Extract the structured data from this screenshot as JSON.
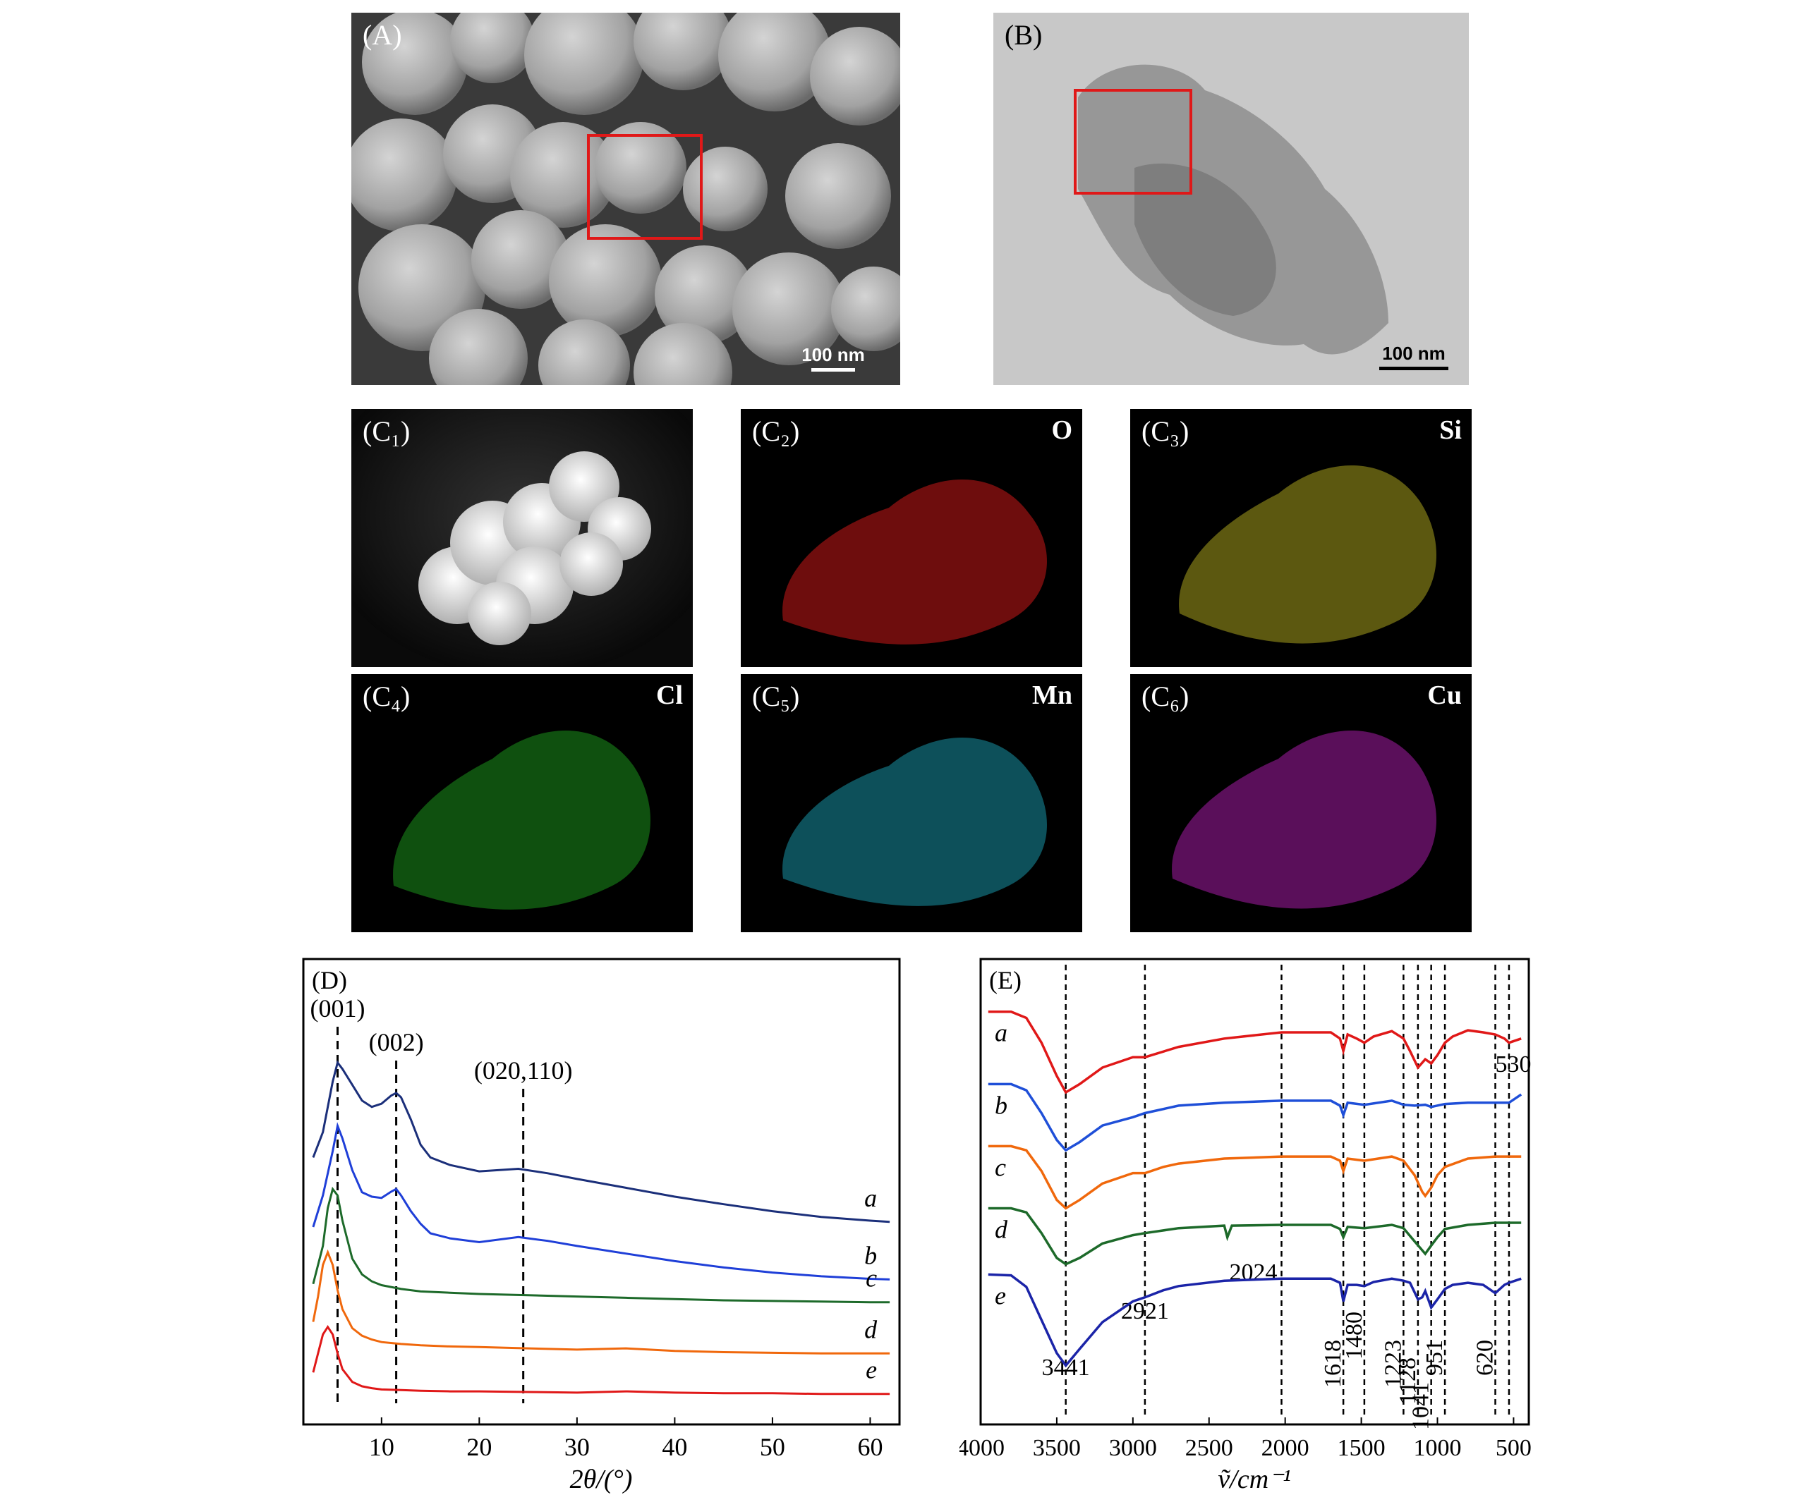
{
  "figure": {
    "panel_A": {
      "label": "(A)",
      "scale_bar": "100 nm"
    },
    "panel_B": {
      "label": "(B)",
      "scale_bar": "100 nm"
    },
    "panels_C": [
      {
        "label": "(C₁)",
        "element": ""
      },
      {
        "label": "(C₂)",
        "element": "O",
        "color": "#c81818"
      },
      {
        "label": "(C₃)",
        "element": "Si",
        "color": "#b8b020"
      },
      {
        "label": "(C₄)",
        "element": "Cl",
        "color": "#1ea01e"
      },
      {
        "label": "(C₅)",
        "element": "Mn",
        "color": "#1aa0b4"
      },
      {
        "label": "(C₆)",
        "element": "Cu",
        "color": "#b41eb4"
      }
    ]
  },
  "chart_data": [
    {
      "panel_label": "(D)",
      "type": "line",
      "xlabel": "2θ/(°)",
      "ylabel": "",
      "xlim": [
        2,
        63
      ],
      "xticks": [
        10,
        20,
        30,
        40,
        50,
        60
      ],
      "grid": false,
      "peak_annotations": [
        {
          "label": "(001)",
          "x": 5.5
        },
        {
          "label": "(002)",
          "x": 11.5
        },
        {
          "label": "(020,110)",
          "x": 24.5
        }
      ],
      "series": [
        {
          "name": "a",
          "color": "#1b2f7a",
          "x": [
            3,
            4,
            5,
            5.5,
            6,
            7,
            8,
            9,
            10,
            11,
            11.5,
            12,
            13,
            14,
            15,
            17,
            20,
            24,
            27,
            30,
            35,
            40,
            45,
            50,
            55,
            60,
            62
          ],
          "y": [
            640,
            680,
            760,
            790,
            780,
            755,
            730,
            720,
            725,
            738,
            742,
            735,
            700,
            660,
            640,
            628,
            618,
            622,
            615,
            606,
            592,
            578,
            566,
            555,
            546,
            540,
            538
          ]
        },
        {
          "name": "b",
          "color": "#1f3fd8",
          "x": [
            3,
            4,
            5,
            5.5,
            6,
            7,
            8,
            9,
            10,
            11,
            11.5,
            12,
            13,
            14,
            15,
            17,
            20,
            24,
            27,
            30,
            35,
            40,
            45,
            50,
            55,
            60,
            62
          ],
          "y": [
            530,
            580,
            650,
            690,
            670,
            620,
            585,
            578,
            576,
            586,
            590,
            580,
            555,
            535,
            520,
            512,
            506,
            514,
            508,
            500,
            488,
            476,
            466,
            458,
            452,
            448,
            447
          ]
        },
        {
          "name": "c",
          "color": "#1d6a2a",
          "x": [
            3,
            4,
            4.5,
            5,
            5.5,
            6,
            7,
            8,
            9,
            10,
            12,
            14,
            17,
            20,
            25,
            30,
            35,
            40,
            45,
            50,
            55,
            60,
            62
          ],
          "y": [
            440,
            500,
            560,
            590,
            580,
            540,
            480,
            455,
            444,
            438,
            432,
            428,
            426,
            424,
            422,
            420,
            418,
            416,
            414,
            413,
            412,
            411,
            411
          ]
        },
        {
          "name": "d",
          "color": "#f0680c",
          "x": [
            3,
            3.5,
            4,
            4.5,
            5,
            5.5,
            6,
            7,
            8,
            9,
            10,
            12,
            14,
            17,
            20,
            25,
            30,
            35,
            40,
            45,
            50,
            55,
            60,
            62
          ],
          "y": [
            380,
            420,
            470,
            490,
            470,
            430,
            400,
            370,
            358,
            352,
            348,
            345,
            343,
            341,
            340,
            338,
            336,
            338,
            334,
            332,
            331,
            330,
            330,
            330
          ]
        },
        {
          "name": "e",
          "color": "#e01818",
          "x": [
            3,
            3.5,
            4,
            4.5,
            5,
            5.5,
            6,
            7,
            8,
            9,
            10,
            12,
            14,
            17,
            20,
            25,
            30,
            35,
            40,
            45,
            50,
            55,
            60,
            62
          ],
          "y": [
            300,
            330,
            360,
            372,
            360,
            330,
            305,
            285,
            278,
            275,
            273,
            272,
            271,
            270,
            270,
            269,
            268,
            270,
            268,
            267,
            267,
            266,
            266,
            266
          ]
        }
      ]
    },
    {
      "panel_label": "(E)",
      "type": "line",
      "xlabel": "ṽ/cm⁻¹",
      "ylabel": "",
      "xlim": [
        4000,
        400
      ],
      "x_reversed": true,
      "xticks": [
        4000,
        3500,
        3000,
        2500,
        2000,
        1500,
        1000,
        500
      ],
      "grid": false,
      "band_annotations": [
        {
          "label": "3441",
          "x": 3441
        },
        {
          "label": "2921",
          "x": 2921
        },
        {
          "label": "2024",
          "x": 2024
        },
        {
          "label": "1618",
          "x": 1618
        },
        {
          "label": "1480",
          "x": 1480
        },
        {
          "label": "1223",
          "x": 1223
        },
        {
          "label": "1128",
          "x": 1128
        },
        {
          "label": "1041",
          "x": 1041
        },
        {
          "label": "951",
          "x": 951
        },
        {
          "label": "620",
          "x": 620
        },
        {
          "label": "530",
          "x": 530
        }
      ],
      "series": [
        {
          "name": "a",
          "color": "#e01818",
          "x": [
            3950,
            3800,
            3700,
            3600,
            3500,
            3441,
            3350,
            3200,
            3000,
            2921,
            2700,
            2400,
            2024,
            1700,
            1640,
            1618,
            1590,
            1530,
            1480,
            1420,
            1300,
            1223,
            1180,
            1128,
            1080,
            1041,
            1000,
            951,
            900,
            800,
            700,
            620,
            560,
            530,
            450
          ],
          "y": [
            895,
            895,
            880,
            820,
            740,
            700,
            720,
            760,
            785,
            785,
            810,
            830,
            845,
            845,
            830,
            800,
            840,
            830,
            820,
            835,
            848,
            830,
            800,
            760,
            780,
            770,
            790,
            820,
            835,
            850,
            845,
            840,
            830,
            820,
            830
          ]
        },
        {
          "name": "b",
          "color": "#1f4fd8",
          "x": [
            3950,
            3800,
            3700,
            3600,
            3500,
            3441,
            3350,
            3200,
            3000,
            2921,
            2700,
            2400,
            2024,
            1700,
            1640,
            1618,
            1590,
            1480,
            1300,
            1223,
            1150,
            1080,
            1041,
            951,
            800,
            620,
            530,
            450
          ],
          "y": [
            720,
            720,
            705,
            650,
            585,
            560,
            580,
            620,
            640,
            650,
            668,
            675,
            680,
            680,
            668,
            645,
            675,
            670,
            680,
            670,
            668,
            670,
            665,
            672,
            675,
            675,
            675,
            695
          ]
        },
        {
          "name": "c",
          "color": "#f0680c",
          "x": [
            3950,
            3800,
            3700,
            3600,
            3500,
            3441,
            3350,
            3200,
            3000,
            2921,
            2800,
            2700,
            2400,
            2024,
            1700,
            1640,
            1618,
            1590,
            1480,
            1300,
            1223,
            1150,
            1100,
            1080,
            1041,
            1000,
            951,
            800,
            620,
            530,
            450
          ],
          "y": [
            570,
            570,
            560,
            510,
            440,
            420,
            440,
            480,
            505,
            505,
            520,
            528,
            540,
            545,
            545,
            535,
            510,
            540,
            535,
            545,
            535,
            500,
            460,
            450,
            470,
            500,
            520,
            540,
            545,
            545,
            545
          ]
        },
        {
          "name": "d",
          "color": "#1d6a2a",
          "x": [
            3950,
            3800,
            3700,
            3600,
            3500,
            3441,
            3350,
            3200,
            3000,
            2921,
            2700,
            2400,
            2380,
            2350,
            2024,
            1700,
            1640,
            1618,
            1590,
            1480,
            1300,
            1223,
            1150,
            1080,
            1041,
            1000,
            951,
            800,
            620,
            530,
            450
          ],
          "y": [
            420,
            420,
            410,
            360,
            300,
            285,
            300,
            335,
            355,
            360,
            372,
            378,
            350,
            378,
            380,
            380,
            370,
            350,
            375,
            372,
            380,
            372,
            340,
            310,
            330,
            350,
            370,
            380,
            385,
            385,
            385
          ]
        },
        {
          "name": "e",
          "color": "#1b24a8",
          "x": [
            3950,
            3800,
            3700,
            3600,
            3500,
            3441,
            3350,
            3200,
            3000,
            2921,
            2800,
            2700,
            2400,
            2024,
            1700,
            1640,
            1618,
            1590,
            1530,
            1480,
            1420,
            1300,
            1223,
            1180,
            1128,
            1100,
            1080,
            1041,
            1000,
            951,
            900,
            800,
            700,
            620,
            560,
            530,
            450
          ],
          "y": [
            260,
            258,
            230,
            150,
            70,
            40,
            80,
            145,
            195,
            205,
            222,
            232,
            245,
            250,
            250,
            240,
            195,
            235,
            235,
            232,
            242,
            250,
            245,
            240,
            200,
            205,
            220,
            180,
            200,
            225,
            235,
            240,
            235,
            215,
            235,
            240,
            250
          ]
        }
      ]
    }
  ]
}
